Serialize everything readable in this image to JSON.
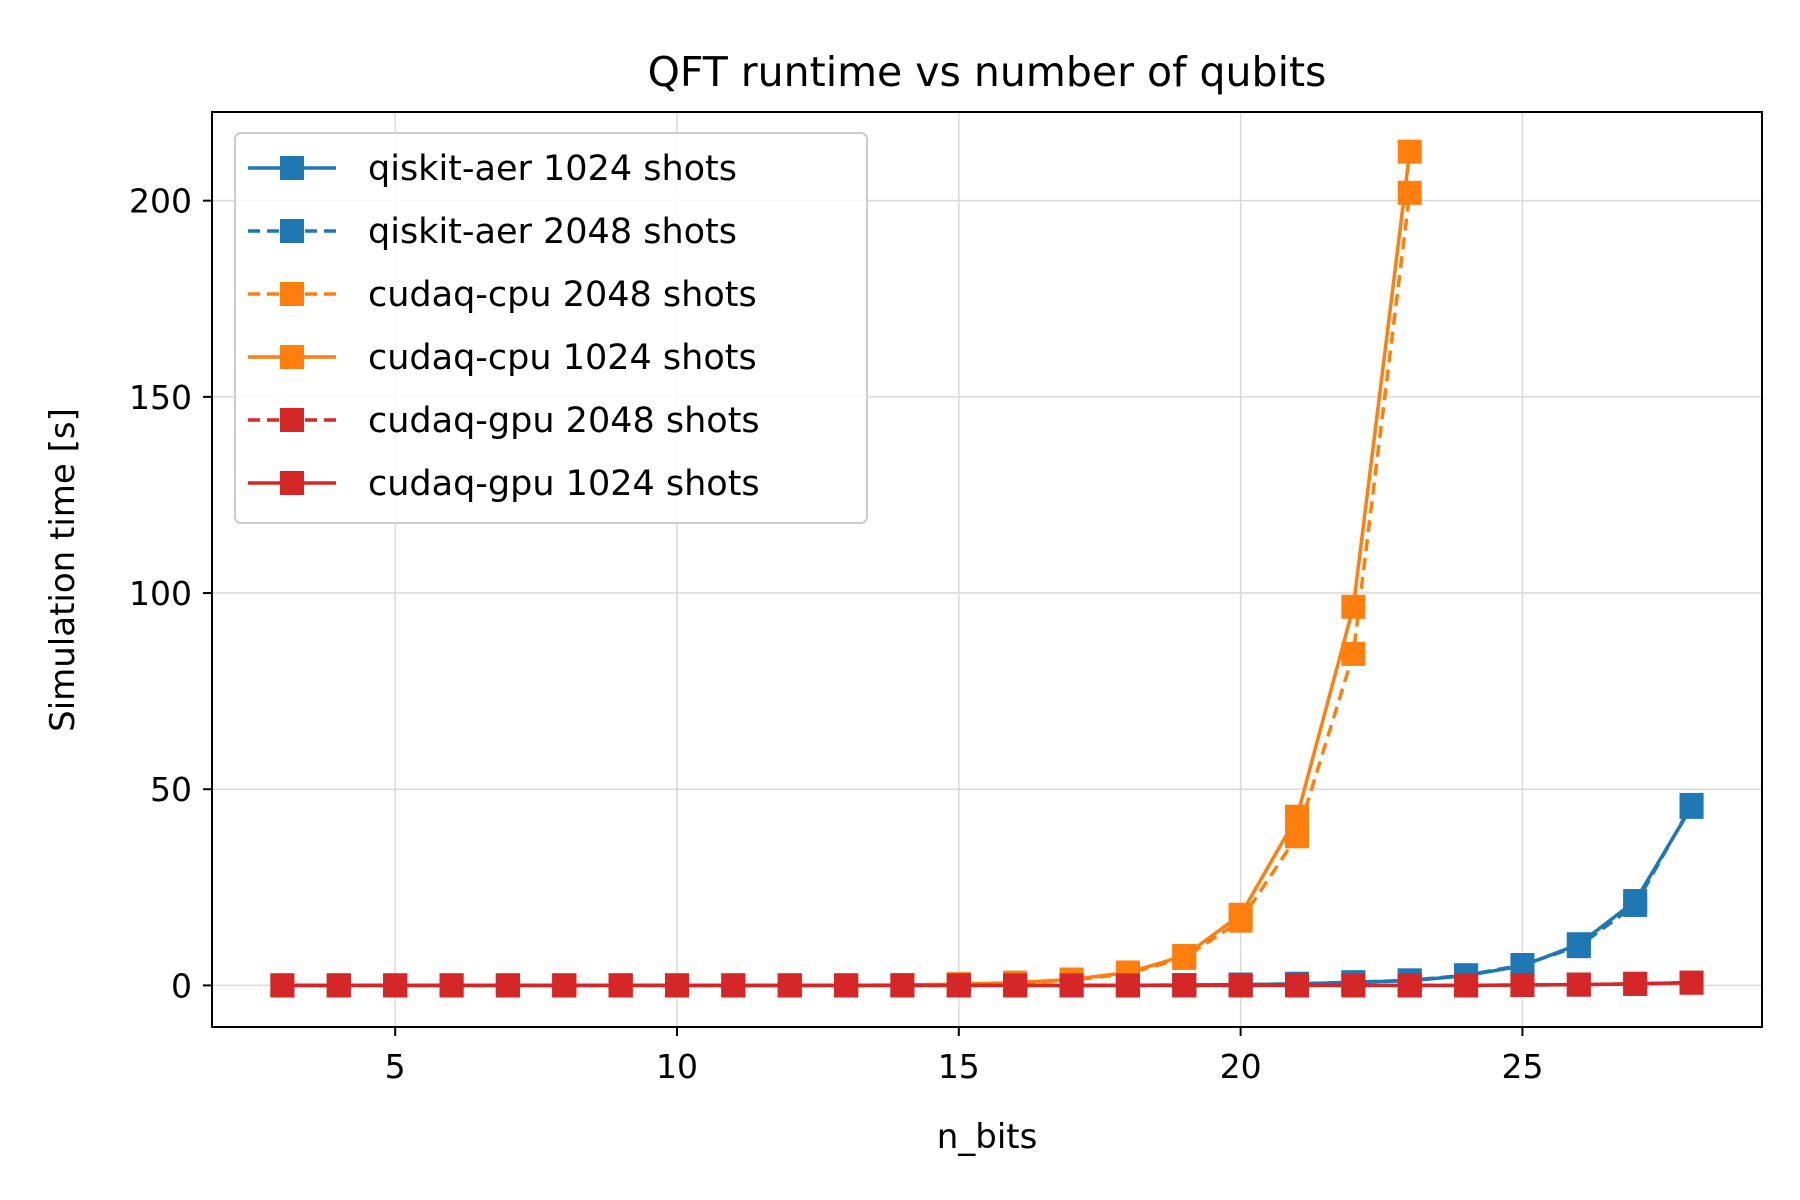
{
  "chart_data": {
    "type": "line",
    "title": "QFT  runtime vs number of qubits",
    "xlabel": "n_bits",
    "ylabel": "Simulation time [s]",
    "xlim": [
      1.75,
      29.25
    ],
    "ylim": [
      -10.6,
      222.6
    ],
    "xticks": [
      5,
      10,
      15,
      20,
      25
    ],
    "yticks": [
      0,
      50,
      100,
      150,
      200
    ],
    "grid": true,
    "legend_position": "upper-left",
    "series": [
      {
        "name": "qiskit-aer  1024 shots",
        "color": "#1f77b4",
        "linestyle": "solid",
        "marker": "square",
        "x": [
          3,
          4,
          5,
          6,
          7,
          8,
          9,
          10,
          11,
          12,
          13,
          14,
          15,
          16,
          17,
          18,
          19,
          20,
          21,
          22,
          23,
          24,
          25,
          26,
          27,
          28
        ],
        "y": [
          0,
          0,
          0,
          0,
          0,
          0,
          0,
          0,
          0,
          0,
          0,
          0,
          0,
          0,
          0,
          0,
          0.1,
          0.2,
          0.4,
          0.8,
          1.2,
          2.5,
          5,
          10.5,
          21.5,
          45.5
        ]
      },
      {
        "name": "qiskit-aer  2048 shots",
        "color": "#1f77b4",
        "linestyle": "dashed",
        "marker": "square",
        "x": [
          3,
          4,
          5,
          6,
          7,
          8,
          9,
          10,
          11,
          12,
          13,
          14,
          15,
          16,
          17,
          18,
          19,
          20,
          21,
          22,
          23,
          24,
          25,
          26,
          27,
          28
        ],
        "y": [
          0,
          0,
          0,
          0,
          0,
          0,
          0,
          0,
          0,
          0,
          0,
          0,
          0,
          0,
          0,
          0,
          0.1,
          0.2,
          0.4,
          0.8,
          1.3,
          2.6,
          5.2,
          10,
          20.5,
          46
        ]
      },
      {
        "name": "cudaq-cpu  2048 shots",
        "color": "#ff7f0e",
        "linestyle": "dashed",
        "marker": "square",
        "x": [
          3,
          4,
          5,
          6,
          7,
          8,
          9,
          10,
          11,
          12,
          13,
          14,
          15,
          16,
          17,
          18,
          19,
          20,
          21,
          22,
          23
        ],
        "y": [
          0,
          0,
          0,
          0,
          0,
          0,
          0,
          0,
          0,
          0,
          0,
          0.1,
          0.3,
          0.6,
          1.3,
          3,
          7,
          16.5,
          38,
          84.5,
          202
        ]
      },
      {
        "name": "cudaq-cpu  1024 shots",
        "color": "#ff7f0e",
        "linestyle": "solid",
        "marker": "square",
        "x": [
          3,
          4,
          5,
          6,
          7,
          8,
          9,
          10,
          11,
          12,
          13,
          14,
          15,
          16,
          17,
          18,
          19,
          20,
          21,
          22,
          23
        ],
        "y": [
          0,
          0,
          0,
          0,
          0,
          0,
          0,
          0,
          0,
          0,
          0,
          0.1,
          0.3,
          0.7,
          1.5,
          3.3,
          7.5,
          18,
          43,
          96.5,
          212.5
        ]
      },
      {
        "name": "cudaq-gpu  2048 shots",
        "color": "#d62728",
        "linestyle": "dashed",
        "marker": "square",
        "x": [
          3,
          4,
          5,
          6,
          7,
          8,
          9,
          10,
          11,
          12,
          13,
          14,
          15,
          16,
          17,
          18,
          19,
          20,
          21,
          22,
          23,
          24,
          25,
          26,
          27,
          28
        ],
        "y": [
          0,
          0,
          0,
          0,
          0,
          0,
          0,
          0,
          0,
          0,
          0,
          0,
          0,
          0,
          0,
          0,
          0,
          0,
          0,
          0,
          0,
          0,
          0.1,
          0.2,
          0.4,
          0.7
        ]
      },
      {
        "name": "cudaq-gpu  1024 shots",
        "color": "#d62728",
        "linestyle": "solid",
        "marker": "square",
        "x": [
          3,
          4,
          5,
          6,
          7,
          8,
          9,
          10,
          11,
          12,
          13,
          14,
          15,
          16,
          17,
          18,
          19,
          20,
          21,
          22,
          23,
          24,
          25,
          26,
          27,
          28
        ],
        "y": [
          0,
          0,
          0,
          0,
          0,
          0,
          0,
          0,
          0,
          0,
          0,
          0,
          0,
          0,
          0,
          0,
          0,
          0,
          0,
          0,
          0,
          0,
          0.1,
          0.2,
          0.4,
          0.7
        ]
      }
    ]
  }
}
